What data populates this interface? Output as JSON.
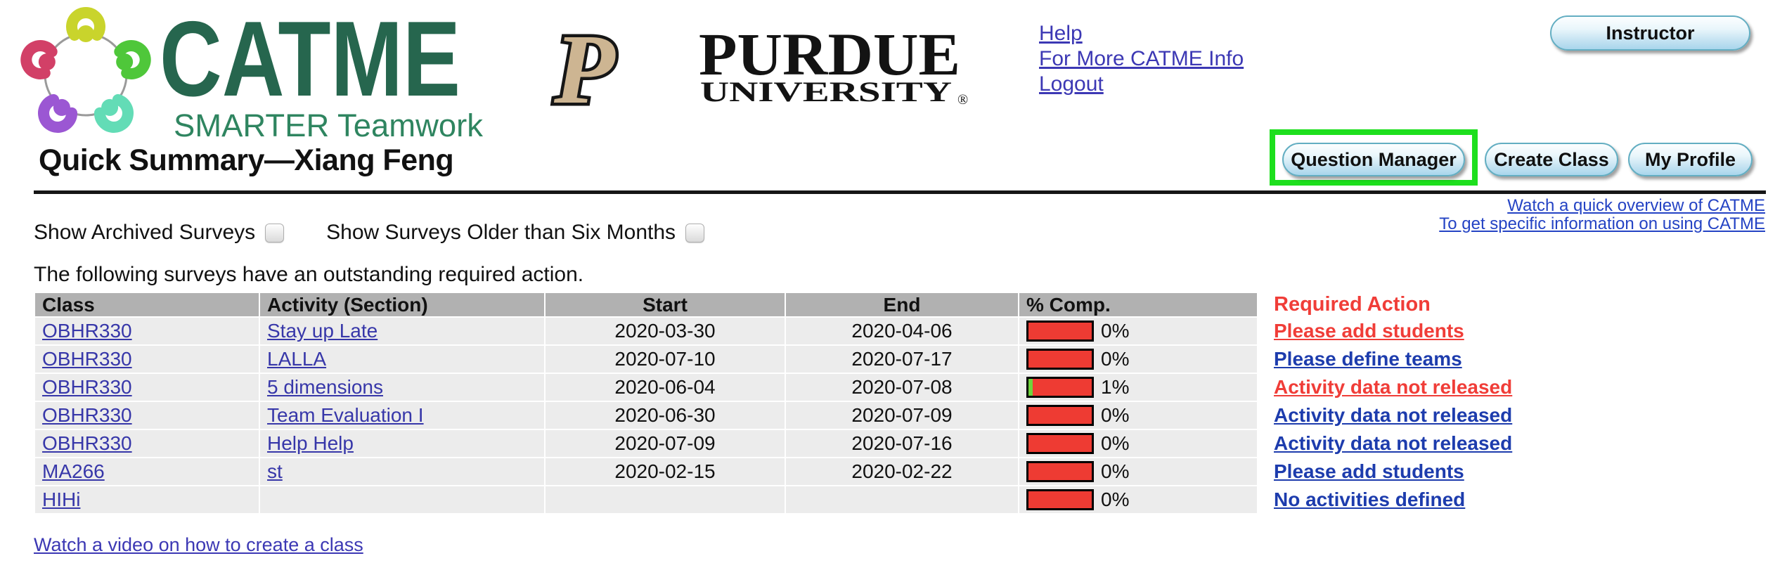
{
  "brand": {
    "catme_title": "CATME",
    "catme_subtitle": "SMARTER Teamwork",
    "purdue_name": "PURDUE",
    "purdue_sub": "UNIVERSITY",
    "purdue_registered": "®",
    "purdue_p": "P"
  },
  "nav": {
    "links": [
      {
        "label": "Help"
      },
      {
        "label": "For More CATME Info"
      },
      {
        "label": "Logout"
      }
    ],
    "role_button_label": "Instructor"
  },
  "page": {
    "title": "Quick Summary—Xiang Feng",
    "intro_text": "The following surveys have an outstanding required action.",
    "footer_link": "Watch a video on how to create a class"
  },
  "toolbar": {
    "question_manager_label": "Question Manager",
    "create_class_label": "Create Class",
    "my_profile_label": "My Profile"
  },
  "quick_links": [
    {
      "label": "Watch a quick overview of CATME"
    },
    {
      "label": "To get specific information on using CATME"
    }
  ],
  "filters": [
    {
      "label": "Show Archived Surveys",
      "checked": false
    },
    {
      "label": "Show Surveys Older than Six Months",
      "checked": false
    }
  ],
  "table": {
    "columns": [
      "Class",
      "Activity (Section)",
      "Start",
      "End",
      "% Comp.",
      "Required Action"
    ],
    "rows": [
      {
        "class": "OBHR330",
        "activity": "Stay up Late",
        "start": "2020-03-30",
        "end": "2020-04-06",
        "pct_label": "0%",
        "pct_value": 0,
        "action": "Please add students",
        "action_color": "red"
      },
      {
        "class": "OBHR330",
        "activity": "LALLA",
        "start": "2020-07-10",
        "end": "2020-07-17",
        "pct_label": "0%",
        "pct_value": 0,
        "action": "Please define teams",
        "action_color": "blue"
      },
      {
        "class": "OBHR330",
        "activity": "5 dimensions",
        "start": "2020-06-04",
        "end": "2020-07-08",
        "pct_label": "1%",
        "pct_value": 1,
        "action": "Activity data not released",
        "action_color": "red"
      },
      {
        "class": "OBHR330",
        "activity": "Team Evaluation I",
        "start": "2020-06-30",
        "end": "2020-07-09",
        "pct_label": "0%",
        "pct_value": 0,
        "action": "Activity data not released",
        "action_color": "blue"
      },
      {
        "class": "OBHR330",
        "activity": "Help Help",
        "start": "2020-07-09",
        "end": "2020-07-16",
        "pct_label": "0%",
        "pct_value": 0,
        "action": "Activity data not released",
        "action_color": "blue"
      },
      {
        "class": "MA266",
        "activity": "st",
        "start": "2020-02-15",
        "end": "2020-02-22",
        "pct_label": "0%",
        "pct_value": 0,
        "action": "Please add students",
        "action_color": "blue"
      },
      {
        "class": "HIHi",
        "activity": "",
        "start": "",
        "end": "",
        "pct_label": "0%",
        "pct_value": 0,
        "action": "No activities defined",
        "action_color": "blue"
      }
    ]
  },
  "colors": {
    "catme_green": "#26664e",
    "link_blue": "#3c38b4",
    "table_link_blue": "#3737a9",
    "action_red": "#f03d38",
    "action_blue": "#1d3cad",
    "progress_red": "#ee3b33",
    "progress_green": "#6ed33c",
    "header_gray": "#b1b1b1",
    "row_gray": "#ececec",
    "highlight_green": "#1ddf1d",
    "purdue_gold": "#cdb592"
  }
}
